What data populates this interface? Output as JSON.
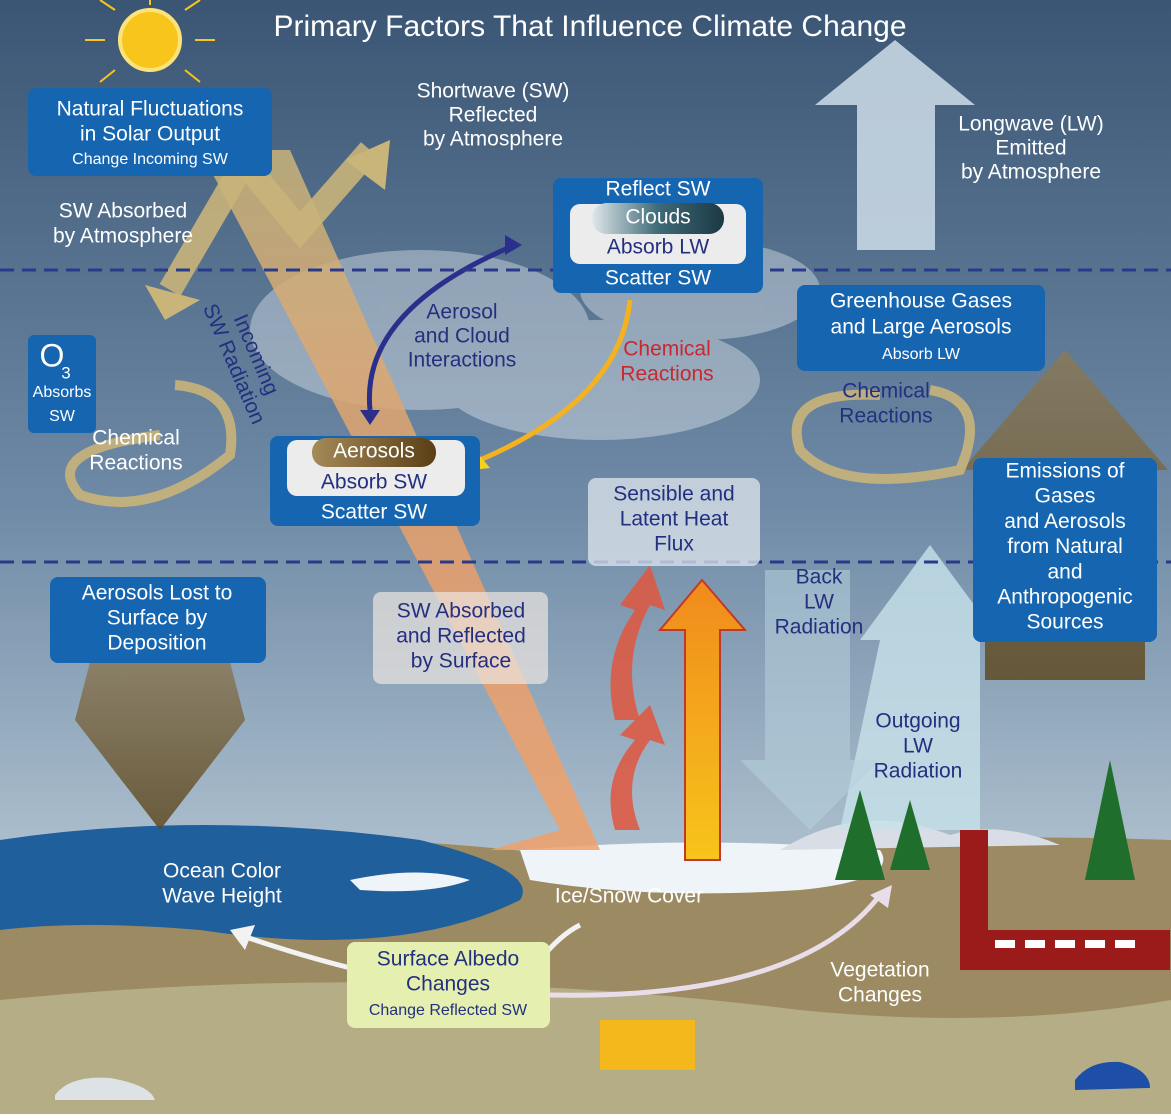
{
  "title": "Primary Factors That Influence Climate Change",
  "solar_output": {
    "lines": [
      "Natural Fluctuations",
      "in Solar Output"
    ],
    "sub": "Change Incoming SW"
  },
  "sw_reflected": {
    "lines": [
      "Shortwave (SW)",
      "Reflected",
      "by Atmosphere"
    ]
  },
  "lw_emitted": {
    "lines": [
      "Longwave (LW)",
      "Emitted",
      "by Atmosphere"
    ]
  },
  "sw_absorbed_atmosphere": {
    "lines": [
      "SW Absorbed",
      "by Atmosphere"
    ]
  },
  "clouds": {
    "top": "Reflect SW",
    "name": "Clouds",
    "middle": "Absorb LW",
    "bottom": "Scatter SW"
  },
  "incoming_sw": {
    "lines": [
      "Incoming",
      "SW Radiation"
    ]
  },
  "aerosol_cloud": {
    "lines": [
      "Aerosol",
      "and Cloud",
      "Interactions"
    ]
  },
  "chemical_center": {
    "lines": [
      "Chemical",
      "Reactions"
    ]
  },
  "greenhouse": {
    "lines": [
      "Greenhouse Gases",
      "and Large Aerosols"
    ],
    "sub": "Absorb LW"
  },
  "chemical_right": {
    "lines": [
      "Chemical",
      "Reactions"
    ]
  },
  "ozone": {
    "symbol": "O",
    "subscript": "3",
    "lines": [
      "Absorbs",
      "SW"
    ]
  },
  "chemical_left": {
    "lines": [
      "Chemical",
      "Reactions"
    ]
  },
  "aerosols": {
    "name": "Aerosols",
    "middle": "Absorb SW",
    "bottom": "Scatter SW"
  },
  "heat_flux": {
    "lines": [
      "Sensible and",
      "Latent Heat",
      "Flux"
    ]
  },
  "emissions": {
    "lines": [
      "Emissions of",
      "Gases",
      "and Aerosols",
      "from Natural",
      "and",
      "Anthropogenic",
      "Sources"
    ]
  },
  "aerosols_lost": {
    "lines": [
      "Aerosols Lost to",
      "Surface by",
      "Deposition"
    ]
  },
  "sw_surface": {
    "lines": [
      "SW Absorbed",
      "and Reflected",
      "by Surface"
    ]
  },
  "back_lw": {
    "lines": [
      "Back",
      "LW",
      "Radiation"
    ]
  },
  "outgoing_lw": {
    "lines": [
      "Outgoing",
      "LW",
      "Radiation"
    ]
  },
  "ocean": {
    "lines": [
      "Ocean Color",
      "Wave Height"
    ]
  },
  "ice": {
    "label": "Ice/Snow Cover"
  },
  "albedo": {
    "lines": [
      "Surface Albedo",
      "Changes"
    ],
    "sub": "Change Reflected SW"
  },
  "vegetation": {
    "lines": [
      "Vegetation",
      "Changes"
    ]
  }
}
